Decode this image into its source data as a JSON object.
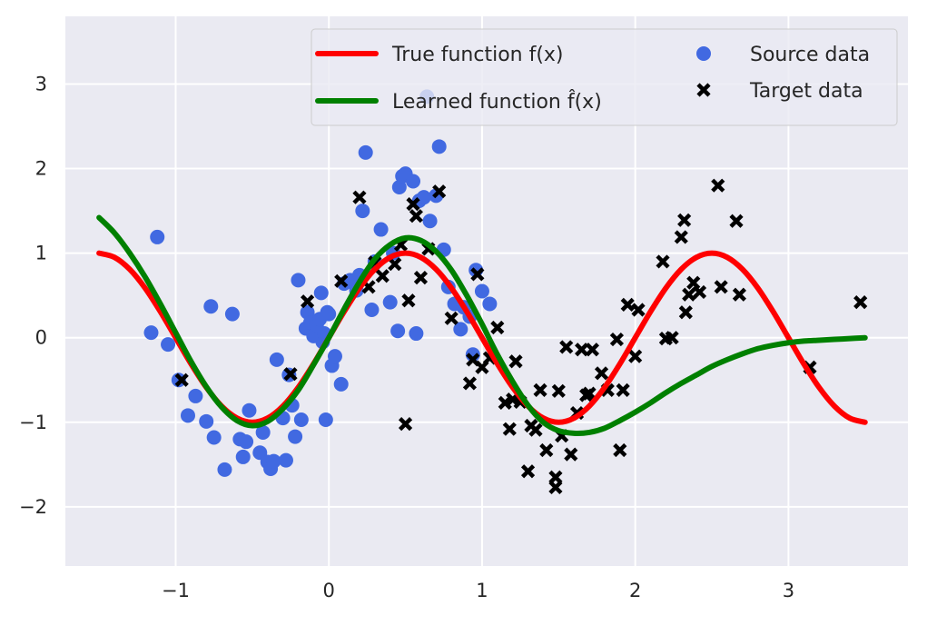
{
  "chart_data": {
    "type": "scatter",
    "title": "",
    "xlabel": "",
    "ylabel": "",
    "xlim": [
      -1.72,
      3.78
    ],
    "ylim": [
      -2.7,
      3.8
    ],
    "grid": true,
    "legend_position": "top-right",
    "x_ticks": [
      -1,
      0,
      1,
      2,
      3
    ],
    "x_tick_labels": [
      "−1",
      "0",
      "1",
      "2",
      "3"
    ],
    "y_ticks": [
      -2,
      -1,
      0,
      1,
      2,
      3
    ],
    "y_tick_labels": [
      "−2",
      "−1",
      "0",
      "1",
      "2",
      "3"
    ],
    "series": [
      {
        "name": "True function f(x)",
        "legend_label": "True function f(x)",
        "kind": "line",
        "color": "#ff0000",
        "x": [
          -1.5,
          -1.4,
          -1.3,
          -1.2,
          -1.1,
          -1.0,
          -0.9,
          -0.8,
          -0.7,
          -0.6,
          -0.5,
          -0.4,
          -0.3,
          -0.2,
          -0.1,
          0.0,
          0.1,
          0.2,
          0.3,
          0.4,
          0.5,
          0.6,
          0.7,
          0.8,
          0.9,
          1.0,
          1.1,
          1.2,
          1.3,
          1.4,
          1.5,
          1.6,
          1.7,
          1.8,
          1.9,
          2.0,
          2.1,
          2.2,
          2.3,
          2.4,
          2.5,
          2.6,
          2.7,
          2.8,
          2.9,
          3.0,
          3.1,
          3.2,
          3.3,
          3.4,
          3.5
        ],
        "y": [
          1.0,
          0.951,
          0.809,
          0.588,
          0.309,
          0.0,
          -0.309,
          -0.588,
          -0.809,
          -0.951,
          -1.0,
          -0.951,
          -0.809,
          -0.588,
          -0.309,
          0.0,
          0.309,
          0.588,
          0.809,
          0.951,
          1.0,
          0.951,
          0.809,
          0.588,
          0.309,
          0.0,
          -0.309,
          -0.588,
          -0.809,
          -0.951,
          -1.0,
          -0.951,
          -0.809,
          -0.588,
          -0.309,
          0.0,
          0.309,
          0.588,
          0.809,
          0.951,
          1.0,
          0.951,
          0.809,
          0.588,
          0.309,
          0.0,
          -0.309,
          -0.588,
          -0.809,
          -0.951,
          -1.0
        ]
      },
      {
        "name": "Learned function f̂(x)",
        "legend_label": "Learned function f̂(x)",
        "kind": "line",
        "color": "#008000",
        "x": [
          -1.5,
          -1.4,
          -1.3,
          -1.2,
          -1.1,
          -1.0,
          -0.9,
          -0.8,
          -0.7,
          -0.6,
          -0.5,
          -0.4,
          -0.3,
          -0.2,
          -0.1,
          0.0,
          0.1,
          0.2,
          0.3,
          0.4,
          0.5,
          0.6,
          0.7,
          0.8,
          0.9,
          1.0,
          1.1,
          1.2,
          1.3,
          1.4,
          1.5,
          1.6,
          1.7,
          1.8,
          1.9,
          2.0,
          2.1,
          2.2,
          2.3,
          2.4,
          2.5,
          2.6,
          2.7,
          2.8,
          2.9,
          3.0,
          3.1,
          3.2,
          3.3,
          3.4,
          3.5
        ],
        "y": [
          1.42,
          1.24,
          1.0,
          0.72,
          0.4,
          0.06,
          -0.28,
          -0.58,
          -0.82,
          -0.98,
          -1.04,
          -0.99,
          -0.84,
          -0.62,
          -0.32,
          0.0,
          0.34,
          0.66,
          0.93,
          1.1,
          1.18,
          1.15,
          1.02,
          0.8,
          0.5,
          0.16,
          -0.2,
          -0.52,
          -0.8,
          -1.0,
          -1.1,
          -1.13,
          -1.12,
          -1.07,
          -0.98,
          -0.88,
          -0.77,
          -0.65,
          -0.54,
          -0.44,
          -0.34,
          -0.26,
          -0.19,
          -0.13,
          -0.09,
          -0.06,
          -0.04,
          -0.03,
          -0.02,
          -0.01,
          0.0
        ]
      },
      {
        "name": "Source data",
        "legend_label": "Source data",
        "kind": "scatter",
        "marker": "circle",
        "color": "#4169e1",
        "x": [
          -1.12,
          -1.16,
          -1.05,
          -0.98,
          -0.87,
          -0.92,
          -0.8,
          -0.77,
          -0.75,
          -0.68,
          -0.63,
          -0.58,
          -0.56,
          -0.54,
          -0.52,
          -0.45,
          -0.43,
          -0.4,
          -0.38,
          -0.36,
          -0.34,
          -0.3,
          -0.28,
          -0.26,
          -0.24,
          -0.22,
          -0.2,
          -0.18,
          -0.15,
          -0.14,
          -0.12,
          -0.1,
          -0.08,
          -0.06,
          -0.05,
          -0.04,
          -0.03,
          -0.02,
          0.0,
          -0.01,
          0.02,
          0.04,
          0.08,
          0.1,
          0.14,
          0.18,
          0.2,
          0.22,
          0.24,
          0.28,
          0.3,
          0.34,
          0.4,
          0.42,
          0.45,
          0.46,
          0.48,
          0.5,
          0.55,
          0.57,
          0.59,
          0.62,
          0.66,
          0.7,
          0.72,
          0.75,
          0.78,
          0.82,
          0.86,
          0.88,
          0.92,
          0.94,
          0.96,
          1.0,
          1.05,
          0.64
        ],
        "y": [
          1.19,
          0.06,
          -0.08,
          -0.5,
          -0.69,
          -0.92,
          -0.99,
          0.37,
          -1.18,
          -1.56,
          0.28,
          -1.2,
          -1.41,
          -1.23,
          -0.86,
          -1.36,
          -1.12,
          -1.47,
          -1.55,
          -1.46,
          -0.26,
          -0.95,
          -1.45,
          -0.44,
          -0.8,
          -1.17,
          0.68,
          -0.97,
          0.11,
          0.3,
          0.18,
          0.02,
          0.15,
          0.22,
          0.53,
          -0.05,
          0.05,
          -0.97,
          0.28,
          0.3,
          -0.33,
          -0.22,
          -0.55,
          0.64,
          0.68,
          0.56,
          0.74,
          1.5,
          2.19,
          0.33,
          0.9,
          1.28,
          0.42,
          1.0,
          0.08,
          1.78,
          1.91,
          1.94,
          1.85,
          0.05,
          1.62,
          1.66,
          1.38,
          1.68,
          2.26,
          1.04,
          0.6,
          0.4,
          0.1,
          0.36,
          0.25,
          -0.2,
          0.8,
          0.55,
          0.4,
          2.85
        ]
      },
      {
        "name": "Target data",
        "legend_label": "Target data",
        "kind": "scatter",
        "marker": "x",
        "color": "#000000",
        "x": [
          -0.96,
          -0.25,
          -0.14,
          0.08,
          0.2,
          0.26,
          0.3,
          0.35,
          0.43,
          0.47,
          0.52,
          0.55,
          0.57,
          0.6,
          0.65,
          0.72,
          0.8,
          0.92,
          0.94,
          0.97,
          1.0,
          1.05,
          1.1,
          1.15,
          1.18,
          1.2,
          1.22,
          1.25,
          1.3,
          1.32,
          1.35,
          1.38,
          1.42,
          1.48,
          1.48,
          1.52,
          1.55,
          1.58,
          1.62,
          1.65,
          1.68,
          1.72,
          1.78,
          1.82,
          1.88,
          1.9,
          1.92,
          1.95,
          2.0,
          2.02,
          2.18,
          2.2,
          2.24,
          2.3,
          2.32,
          2.33,
          2.35,
          2.38,
          2.42,
          2.54,
          2.56,
          2.66,
          2.68,
          3.14,
          3.47,
          1.5,
          1.7,
          0.5
        ],
        "y": [
          -0.5,
          -0.43,
          0.43,
          0.67,
          1.66,
          0.6,
          0.89,
          0.73,
          0.87,
          1.1,
          0.44,
          1.58,
          1.44,
          0.71,
          1.05,
          1.73,
          0.23,
          -0.54,
          -0.26,
          0.75,
          -0.35,
          -0.24,
          0.12,
          -0.77,
          -1.08,
          -0.73,
          -0.28,
          -0.76,
          -1.58,
          -1.04,
          -1.09,
          -0.62,
          -1.33,
          -1.65,
          -1.77,
          -1.16,
          -0.11,
          -1.38,
          -0.89,
          -0.14,
          -0.68,
          -0.14,
          -0.42,
          -0.62,
          -0.02,
          -1.33,
          -0.62,
          0.39,
          -0.22,
          0.33,
          0.9,
          -0.01,
          0.0,
          1.19,
          1.39,
          0.3,
          0.51,
          0.65,
          0.54,
          1.8,
          0.6,
          1.38,
          0.51,
          -0.35,
          0.42,
          -0.63,
          -0.66,
          -1.02
        ]
      }
    ]
  }
}
